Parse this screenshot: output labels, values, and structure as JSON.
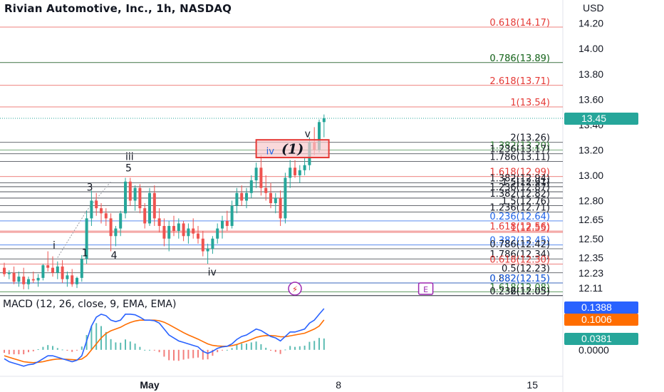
{
  "header": {
    "title": "Rivian Automotive, Inc., 1h, NASDAQ",
    "currency": "USD"
  },
  "macd": {
    "label": "MACD (12, 26, close, 9, EMA, EMA)"
  },
  "colors": {
    "up": "#26a69a",
    "down": "#ef5350",
    "fib_red": "#e53935",
    "fib_green": "#2e7d32",
    "fib_blue": "#1e63e9",
    "fib_dark": "#131722",
    "macd_line": "#2962ff",
    "signal_line": "#ff6d00"
  },
  "price_scale": {
    "min": 12.06,
    "max": 14.26,
    "ticks": [
      {
        "label": "14.20",
        "value": 14.2
      },
      {
        "label": "14.00",
        "value": 14.0
      },
      {
        "label": "13.80",
        "value": 13.8
      },
      {
        "label": "13.60",
        "value": 13.6
      },
      {
        "label": "13.40",
        "value": 13.4
      },
      {
        "label": "13.20",
        "value": 13.2
      },
      {
        "label": "13.00",
        "value": 13.0
      },
      {
        "label": "12.80",
        "value": 12.8
      },
      {
        "label": "12.65",
        "value": 12.65
      },
      {
        "label": "12.50",
        "value": 12.5
      },
      {
        "label": "12.35",
        "value": 12.35
      },
      {
        "label": "12.23",
        "value": 12.23
      },
      {
        "label": "12.11",
        "value": 12.11
      }
    ]
  },
  "macd_scale": {
    "min": -0.07,
    "max": 0.17,
    "ticks": [
      {
        "label": "0.0000",
        "value": 0.0
      }
    ]
  },
  "current_price": {
    "label": "13.45",
    "value": 13.45
  },
  "macd_badges": [
    {
      "label": "0.1388",
      "value": 0.1388,
      "color": "#2962ff"
    },
    {
      "label": "0.1006",
      "value": 0.1006,
      "color": "#ff6d00"
    },
    {
      "label": "0.0381",
      "value": 0.0381,
      "color": "#26a69a"
    }
  ],
  "fib_levels": [
    {
      "label": "0.618(14.17)",
      "value": 14.17,
      "color": "#e53935"
    },
    {
      "label": "0.786(13.89)",
      "value": 13.89,
      "color": "#131722"
    },
    {
      "label": "0.786(13.89)",
      "value": 13.89,
      "color": "#2e7d32"
    },
    {
      "label": "2.618(13.71)",
      "value": 13.71,
      "color": "#e53935"
    },
    {
      "label": "1(13.54)",
      "value": 13.54,
      "color": "#e53935"
    },
    {
      "label": "2(13.26)",
      "value": 13.26,
      "color": "#131722"
    },
    {
      "label": "1.382(13.20)",
      "value": 13.2,
      "color": "#2e7d32"
    },
    {
      "label": "1.236(13.17)",
      "value": 13.17,
      "color": "#131722"
    },
    {
      "label": "1.786(13.11)",
      "value": 13.11,
      "color": "#131722"
    },
    {
      "label": "1.618(12.99)",
      "value": 12.99,
      "color": "#e53935"
    },
    {
      "label": "1.382(12.94)",
      "value": 12.94,
      "color": "#131722"
    },
    {
      "label": "1.5(12.91)",
      "value": 12.91,
      "color": "#131722"
    },
    {
      "label": "1.236(12.87)",
      "value": 12.87,
      "color": "#131722"
    },
    {
      "label": "1.382(12.82)",
      "value": 12.82,
      "color": "#131722"
    },
    {
      "label": "1.5(12.76)",
      "value": 12.76,
      "color": "#131722"
    },
    {
      "label": "1.236(12.71)",
      "value": 12.71,
      "color": "#131722"
    },
    {
      "label": "0.236(12.64)",
      "value": 12.64,
      "color": "#1e63e9"
    },
    {
      "label": "1.618(12.56)",
      "value": 12.56,
      "color": "#e53935"
    },
    {
      "label": "1(12.55)",
      "value": 12.55,
      "color": "#e53935"
    },
    {
      "label": "0.382(12.45)",
      "value": 12.45,
      "color": "#1e63e9"
    },
    {
      "label": "0.786(12.42)",
      "value": 12.42,
      "color": "#131722"
    },
    {
      "label": "1.786(12.34)",
      "value": 12.34,
      "color": "#131722"
    },
    {
      "label": "0.618(12.30)",
      "value": 12.3,
      "color": "#e53935"
    },
    {
      "label": "0.5(12.23)",
      "value": 12.23,
      "color": "#131722"
    },
    {
      "label": "0.882(12.15)",
      "value": 12.15,
      "color": "#131722"
    },
    {
      "label": "0.382(12.15)",
      "value": 12.15,
      "color": "#1e63e9"
    },
    {
      "label": "1.618(12.08)",
      "value": 12.08,
      "color": "#2e7d32"
    },
    {
      "label": "0.236(12.05)",
      "value": 12.05,
      "color": "#131722"
    },
    {
      "label": "2(12.05)",
      "value": 12.05,
      "color": "#131722"
    }
  ],
  "wave_labels": [
    {
      "label": "i",
      "time": 10,
      "value": 12.42
    },
    {
      "label": "1",
      "time": 16,
      "value": 12.36
    },
    {
      "label": "3",
      "time": 17,
      "value": 12.88
    },
    {
      "label": "4",
      "time": 22,
      "value": 12.34
    },
    {
      "label": "iii",
      "time": 25,
      "value": 13.12
    },
    {
      "label": "5",
      "time": 25,
      "value": 13.03
    },
    {
      "label": "iv",
      "time": 42,
      "value": 12.21
    },
    {
      "label": "v",
      "time": 62,
      "value": 13.3
    }
  ],
  "wave_box": {
    "label": "(1)",
    "badge": "iv",
    "time_start": 52,
    "time_end": 67,
    "value_top": 13.28,
    "value_bottom": 13.14
  },
  "x_axis": [
    {
      "label": "May",
      "time": 30
    },
    {
      "label": "8",
      "time": 69
    },
    {
      "label": "15",
      "time": 109
    }
  ],
  "event_markers": [
    {
      "name": "lightning-icon",
      "glyph": "⚡",
      "time": 60
    },
    {
      "name": "earnings-icon",
      "glyph": "E",
      "time": 87
    }
  ],
  "chart_data": {
    "type": "candlestick",
    "ohlc": [
      [
        12.27,
        12.31,
        12.2,
        12.22
      ],
      [
        12.22,
        12.25,
        12.18,
        12.23
      ],
      [
        12.23,
        12.28,
        12.14,
        12.16
      ],
      [
        12.16,
        12.24,
        12.12,
        12.2
      ],
      [
        12.2,
        12.27,
        12.1,
        12.14
      ],
      [
        12.14,
        12.2,
        12.1,
        12.18
      ],
      [
        12.18,
        12.24,
        12.15,
        12.17
      ],
      [
        12.17,
        12.22,
        12.12,
        12.19
      ],
      [
        12.19,
        12.3,
        12.17,
        12.29
      ],
      [
        12.29,
        12.4,
        12.24,
        12.27
      ],
      [
        12.27,
        12.36,
        12.2,
        12.23
      ],
      [
        12.23,
        12.32,
        12.18,
        12.28
      ],
      [
        12.28,
        12.33,
        12.15,
        12.18
      ],
      [
        12.18,
        12.24,
        12.12,
        12.21
      ],
      [
        12.21,
        12.26,
        12.12,
        12.14
      ],
      [
        12.14,
        12.2,
        12.11,
        12.19
      ],
      [
        12.19,
        12.37,
        12.16,
        12.34
      ],
      [
        12.34,
        12.72,
        12.3,
        12.66
      ],
      [
        12.66,
        12.88,
        12.6,
        12.8
      ],
      [
        12.8,
        12.86,
        12.68,
        12.74
      ],
      [
        12.74,
        12.78,
        12.62,
        12.7
      ],
      [
        12.7,
        12.74,
        12.6,
        12.66
      ],
      [
        12.66,
        12.7,
        12.4,
        12.52
      ],
      [
        12.52,
        12.6,
        12.44,
        12.58
      ],
      [
        12.58,
        12.72,
        12.52,
        12.7
      ],
      [
        12.7,
        12.98,
        12.66,
        12.95
      ],
      [
        12.95,
        12.98,
        12.76,
        12.8
      ],
      [
        12.8,
        12.92,
        12.72,
        12.9
      ],
      [
        12.9,
        12.93,
        12.7,
        12.74
      ],
      [
        12.74,
        12.78,
        12.58,
        12.62
      ],
      [
        12.62,
        12.9,
        12.6,
        12.86
      ],
      [
        12.86,
        12.92,
        12.6,
        12.66
      ],
      [
        12.66,
        12.74,
        12.55,
        12.6
      ],
      [
        12.6,
        12.66,
        12.44,
        12.5
      ],
      [
        12.5,
        12.64,
        12.4,
        12.6
      ],
      [
        12.6,
        12.68,
        12.52,
        12.56
      ],
      [
        12.56,
        12.66,
        12.5,
        12.62
      ],
      [
        12.62,
        12.64,
        12.48,
        12.52
      ],
      [
        12.52,
        12.62,
        12.46,
        12.58
      ],
      [
        12.58,
        12.66,
        12.5,
        12.54
      ],
      [
        12.54,
        12.6,
        12.46,
        12.5
      ],
      [
        12.5,
        12.56,
        12.36,
        12.4
      ],
      [
        12.4,
        12.46,
        12.3,
        12.42
      ],
      [
        12.42,
        12.52,
        12.38,
        12.5
      ],
      [
        12.5,
        12.62,
        12.46,
        12.58
      ],
      [
        12.58,
        12.68,
        12.5,
        12.64
      ],
      [
        12.64,
        12.72,
        12.56,
        12.6
      ],
      [
        12.6,
        12.8,
        12.58,
        12.76
      ],
      [
        12.76,
        12.9,
        12.7,
        12.86
      ],
      [
        12.86,
        12.92,
        12.76,
        12.8
      ],
      [
        12.8,
        12.9,
        12.74,
        12.86
      ],
      [
        12.86,
        13.0,
        12.82,
        12.96
      ],
      [
        12.96,
        13.1,
        12.9,
        13.06
      ],
      [
        13.06,
        13.16,
        12.84,
        12.9
      ],
      [
        12.9,
        13.0,
        12.8,
        12.86
      ],
      [
        12.86,
        12.94,
        12.74,
        12.78
      ],
      [
        12.78,
        12.86,
        12.7,
        12.82
      ],
      [
        12.82,
        12.88,
        12.6,
        12.66
      ],
      [
        12.66,
        13.02,
        12.62,
        12.98
      ],
      [
        12.98,
        13.12,
        12.9,
        13.06
      ],
      [
        13.06,
        13.12,
        12.98,
        13.0
      ],
      [
        13.0,
        13.08,
        12.94,
        13.04
      ],
      [
        13.04,
        13.14,
        13.0,
        13.08
      ],
      [
        13.08,
        13.3,
        13.04,
        13.26
      ],
      [
        13.26,
        13.38,
        13.16,
        13.2
      ],
      [
        13.2,
        13.44,
        13.18,
        13.42
      ],
      [
        13.42,
        13.48,
        13.3,
        13.45
      ]
    ],
    "series": [
      {
        "name": "MACD",
        "values": [
          -0.03,
          -0.04,
          -0.045,
          -0.05,
          -0.055,
          -0.05,
          -0.048,
          -0.04,
          -0.03,
          -0.02,
          -0.02,
          -0.025,
          -0.03,
          -0.035,
          -0.04,
          -0.035,
          -0.02,
          0.03,
          0.08,
          0.11,
          0.12,
          0.115,
          0.1,
          0.095,
          0.1,
          0.12,
          0.12,
          0.118,
          0.11,
          0.1,
          0.1,
          0.098,
          0.09,
          0.07,
          0.05,
          0.04,
          0.03,
          0.025,
          0.02,
          0.015,
          0.01,
          -0.005,
          -0.012,
          -0.005,
          0.005,
          0.01,
          0.012,
          0.02,
          0.035,
          0.045,
          0.05,
          0.06,
          0.07,
          0.065,
          0.055,
          0.045,
          0.04,
          0.03,
          0.045,
          0.06,
          0.06,
          0.065,
          0.07,
          0.09,
          0.1,
          0.12,
          0.1388
        ]
      },
      {
        "name": "Signal",
        "values": [
          -0.02,
          -0.025,
          -0.03,
          -0.035,
          -0.04,
          -0.042,
          -0.043,
          -0.042,
          -0.04,
          -0.036,
          -0.033,
          -0.031,
          -0.031,
          -0.032,
          -0.033,
          -0.034,
          -0.031,
          -0.02,
          0.0,
          0.02,
          0.04,
          0.055,
          0.064,
          0.07,
          0.076,
          0.085,
          0.092,
          0.097,
          0.1,
          0.1,
          0.1,
          0.1,
          0.098,
          0.093,
          0.085,
          0.076,
          0.067,
          0.058,
          0.05,
          0.043,
          0.036,
          0.028,
          0.02,
          0.015,
          0.013,
          0.012,
          0.012,
          0.014,
          0.018,
          0.024,
          0.029,
          0.035,
          0.042,
          0.046,
          0.048,
          0.048,
          0.047,
          0.044,
          0.044,
          0.047,
          0.05,
          0.053,
          0.056,
          0.063,
          0.07,
          0.08,
          0.1006
        ]
      }
    ],
    "ylim": [
      12.06,
      14.26
    ]
  }
}
